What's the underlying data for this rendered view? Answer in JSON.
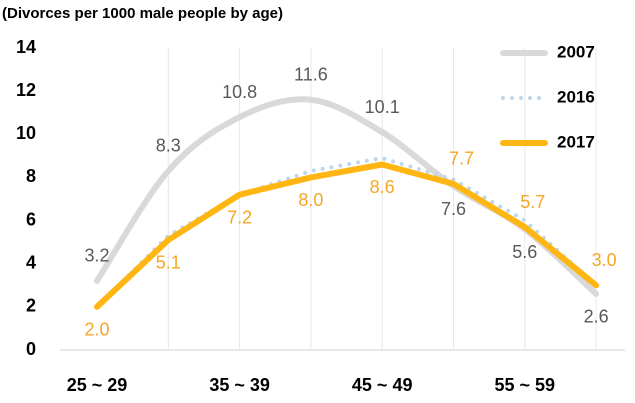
{
  "chart_data": {
    "type": "line",
    "title": "(Divorces per 1000 male people by age)",
    "categories": [
      "25 ~ 29",
      null,
      "35 ~ 39",
      null,
      "45 ~ 49",
      null,
      "55 ~ 59",
      null
    ],
    "ylim": [
      0,
      14
    ],
    "yticks": [
      0,
      2,
      4,
      6,
      8,
      10,
      12,
      14
    ],
    "grid": true,
    "legend": "top-right",
    "series": [
      {
        "name": "2007",
        "color": "#d9d9d9",
        "label_color": "#595959",
        "smooth": true,
        "values": [
          3.2,
          8.3,
          10.8,
          11.6,
          10.1,
          7.6,
          5.6,
          2.6
        ],
        "value_labels": [
          "3.2",
          "8.3",
          "10.8",
          "11.6",
          "10.1",
          "7.6",
          "5.6",
          "2.6"
        ]
      },
      {
        "name": "2016",
        "color": "#bdd7ee",
        "dotted": true,
        "values": [
          2.0,
          5.3,
          7.2,
          8.3,
          8.9,
          7.9,
          6.0,
          3.0
        ]
      },
      {
        "name": "2017",
        "color": "#ffb612",
        "label_color": "#f5a623",
        "values": [
          2.0,
          5.1,
          7.2,
          8.0,
          8.6,
          7.7,
          5.7,
          3.0
        ],
        "value_labels": [
          "2.0",
          "5.1",
          "7.2",
          "8.0",
          "8.6",
          "7.7",
          "5.7",
          "3.0"
        ]
      }
    ]
  }
}
